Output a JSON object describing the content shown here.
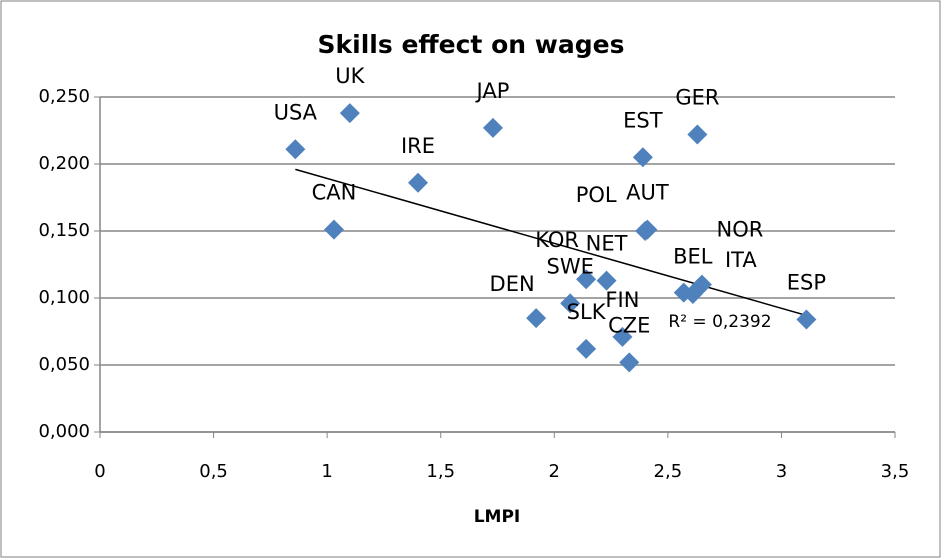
{
  "chart_data": {
    "type": "scatter",
    "title": "Skills effect on wages",
    "x_label": "LMPI",
    "series": [
      {
        "color": "#4f81bd",
        "labels": [
          "USA",
          "UK",
          "CAN",
          "IRE",
          "JAP",
          "EST",
          "GER",
          "POL",
          "AUT",
          "KOR",
          "NET",
          "SWE",
          "DEN",
          "SLK",
          "FIN",
          "CZE",
          "BEL",
          "ITA",
          "NOR",
          "ESP"
        ],
        "x": [
          0.86,
          1.1,
          1.03,
          1.4,
          1.73,
          2.39,
          2.63,
          2.4,
          2.41,
          2.14,
          2.23,
          2.07,
          1.92,
          2.14,
          2.3,
          2.33,
          2.57,
          2.61,
          2.65,
          3.11
        ],
        "values": [
          0.211,
          0.238,
          0.151,
          0.186,
          0.227,
          0.205,
          0.222,
          0.15,
          0.151,
          0.114,
          0.113,
          0.096,
          0.085,
          0.062,
          0.071,
          0.052,
          0.104,
          0.103,
          0.11,
          0.084
        ]
      }
    ],
    "trendline": {
      "x": [
        0.86,
        3.11
      ],
      "values": [
        0.196,
        0.087
      ],
      "label": "R² = 0,2392",
      "color": "#000000"
    },
    "xlim": [
      0,
      3.5
    ],
    "xticks": [
      0,
      {
        "value": 0.5,
        "label": "0,5"
      },
      1,
      {
        "value": 1.5,
        "label": "1,5"
      },
      2,
      {
        "value": 2.5,
        "label": "2,5"
      },
      3,
      {
        "value": 3.5,
        "label": "3,5"
      }
    ],
    "ylim": [
      0,
      0.25
    ],
    "yticks": [
      {
        "value": 0,
        "label": "0,000"
      },
      {
        "value": 0.05,
        "label": "0,050"
      },
      {
        "value": 0.1,
        "label": "0,100"
      },
      {
        "value": 0.15,
        "label": "0,150"
      },
      {
        "value": 0.2,
        "label": "0,200"
      },
      {
        "value": 0.25,
        "label": "0,250"
      }
    ],
    "grid": true
  }
}
